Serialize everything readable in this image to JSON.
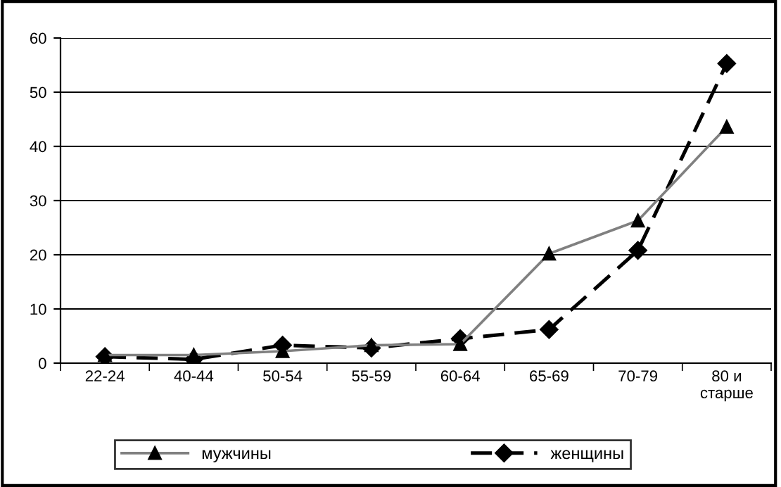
{
  "chart_data": {
    "type": "line",
    "categories": [
      "22-24",
      "40-44",
      "50-54",
      "55-59",
      "60-64",
      "65-69",
      "70-79",
      "80 и\nстарше"
    ],
    "series": [
      {
        "name": "мужчины",
        "color": "#808080",
        "marker": "triangle",
        "line_style": "solid",
        "values": [
          1.5,
          1.5,
          2.2,
          3.3,
          3.5,
          20.2,
          26.3,
          43.6
        ]
      },
      {
        "name": "женщины",
        "color": "#000000",
        "marker": "diamond",
        "line_style": "dashed",
        "values": [
          1.2,
          0.7,
          3.3,
          2.8,
          4.5,
          6.2,
          20.8,
          55.3
        ]
      }
    ],
    "ylim": [
      0,
      60
    ],
    "yticks": [
      0,
      10,
      20,
      30,
      40,
      50,
      60
    ],
    "grid": "y",
    "legend": "bottom"
  }
}
